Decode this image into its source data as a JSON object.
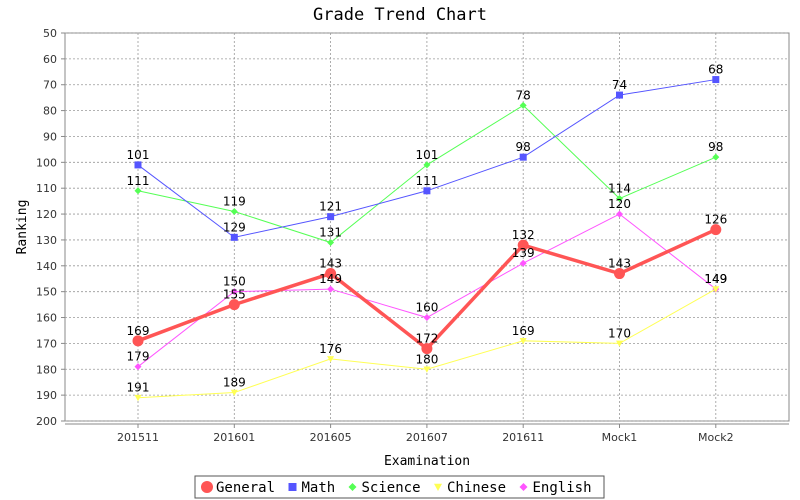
{
  "chart_data": {
    "type": "line",
    "title": "Grade Trend Chart",
    "xlabel": "Examination",
    "ylabel": "Ranking",
    "ylim": [
      50,
      200
    ],
    "y_inverted": true,
    "y_ticks": [
      50,
      60,
      70,
      80,
      90,
      100,
      110,
      120,
      130,
      140,
      150,
      160,
      170,
      180,
      190,
      200
    ],
    "grid": true,
    "legend_position": "bottom",
    "categories": [
      "201511",
      "201601",
      "201605",
      "201607",
      "201611",
      "Mock1",
      "Mock2"
    ],
    "series": [
      {
        "name": "General",
        "color": "#ff5555",
        "marker": "circle",
        "values": [
          169,
          155,
          143,
          172,
          132,
          143,
          126
        ]
      },
      {
        "name": "Math",
        "color": "#5555ff",
        "marker": "square",
        "values": [
          101,
          129,
          121,
          111,
          98,
          74,
          68
        ]
      },
      {
        "name": "Science",
        "color": "#55ff55",
        "marker": "diamond",
        "values": [
          111,
          119,
          131,
          101,
          78,
          114,
          98
        ]
      },
      {
        "name": "Chinese",
        "color": "#ffff55",
        "marker": "triangle-down",
        "values": [
          191,
          189,
          176,
          180,
          169,
          170,
          149
        ]
      },
      {
        "name": "English",
        "color": "#ff55ff",
        "marker": "diamond",
        "values": [
          179,
          150,
          149,
          160,
          139,
          120,
          149
        ]
      }
    ]
  }
}
